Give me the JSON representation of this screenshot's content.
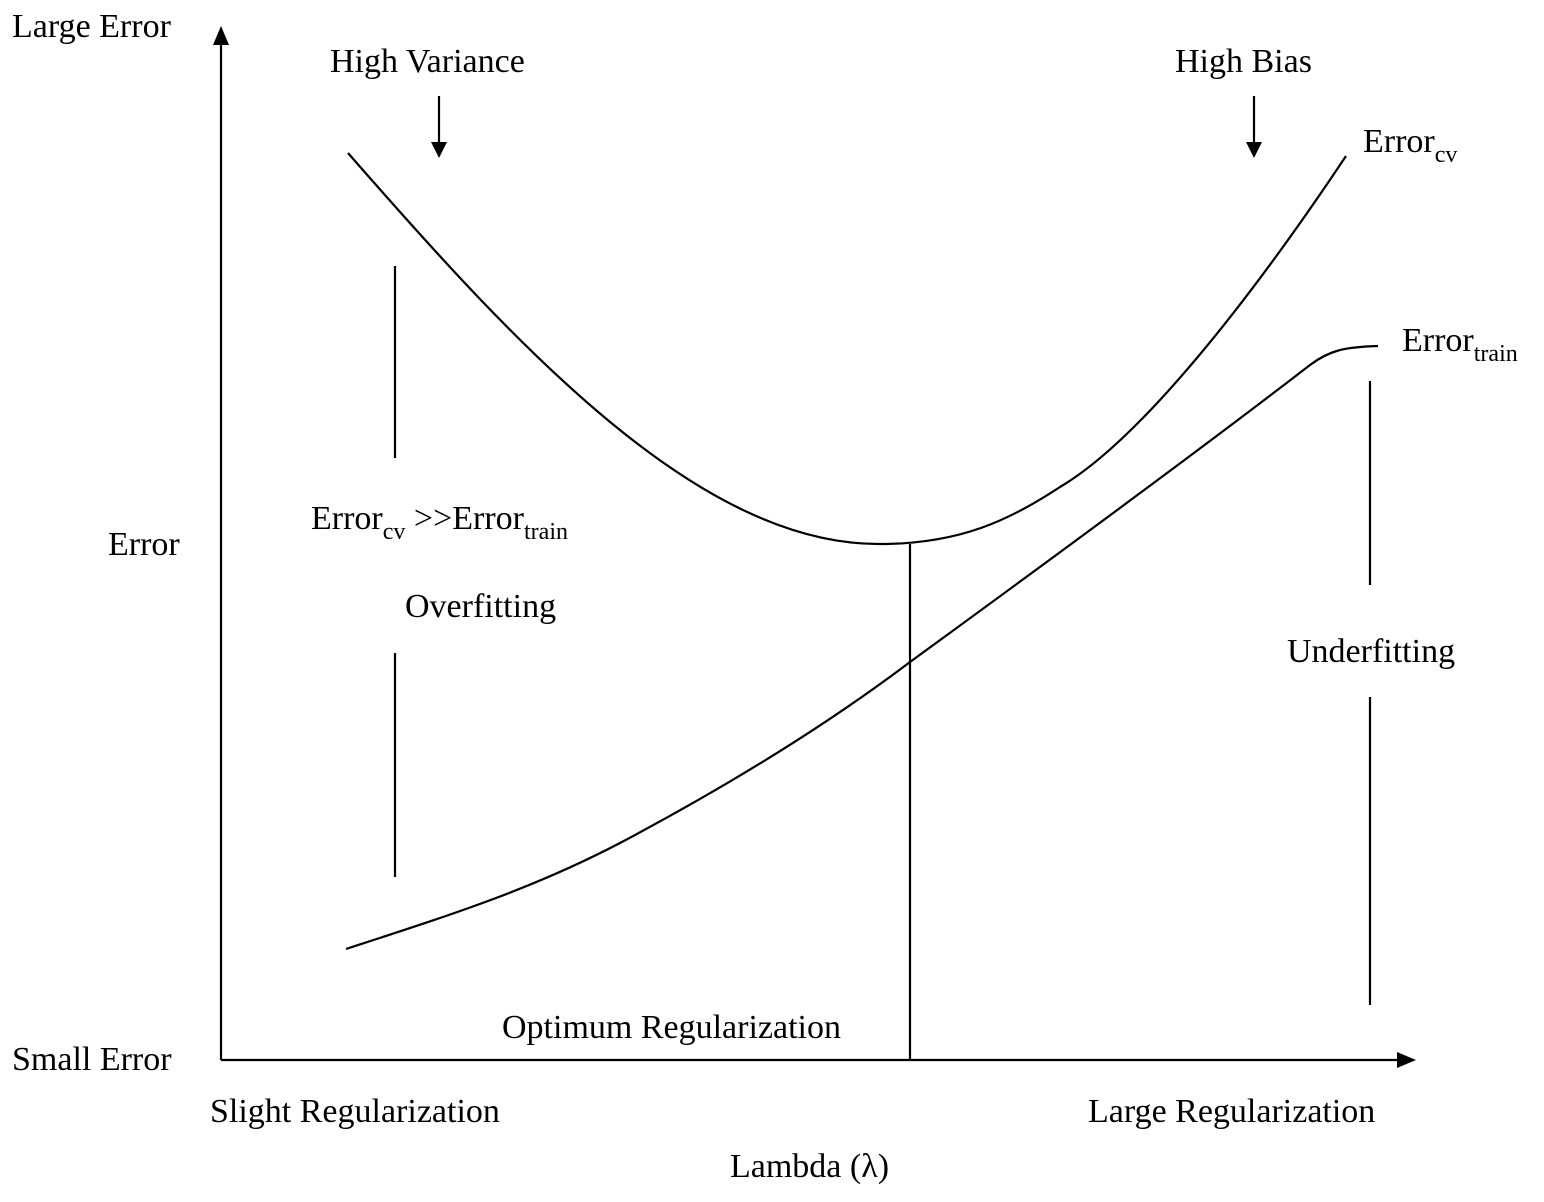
{
  "y_axis": {
    "top_label": "Large Error",
    "middle_label": "Error",
    "bottom_label": "Small Error"
  },
  "x_axis": {
    "left_label": "Slight Regularization",
    "right_label": "Large Regularization",
    "title": "Lambda (λ)"
  },
  "annotations": {
    "high_variance": "High Variance",
    "high_bias": "High Bias",
    "optimum": "Optimum Regularization",
    "overfitting": "Overfitting",
    "underfitting": "Underfitting"
  },
  "curves": {
    "cv": {
      "base": "Error",
      "sub": "cv"
    },
    "train": {
      "base": "Error",
      "sub": "train"
    }
  },
  "comparison": {
    "left_base": "Error",
    "left_sub": "cv",
    "operator": " >>",
    "right_base": "Error",
    "right_sub": "train"
  },
  "colors": {
    "ink": "#000000",
    "background": "#ffffff"
  }
}
